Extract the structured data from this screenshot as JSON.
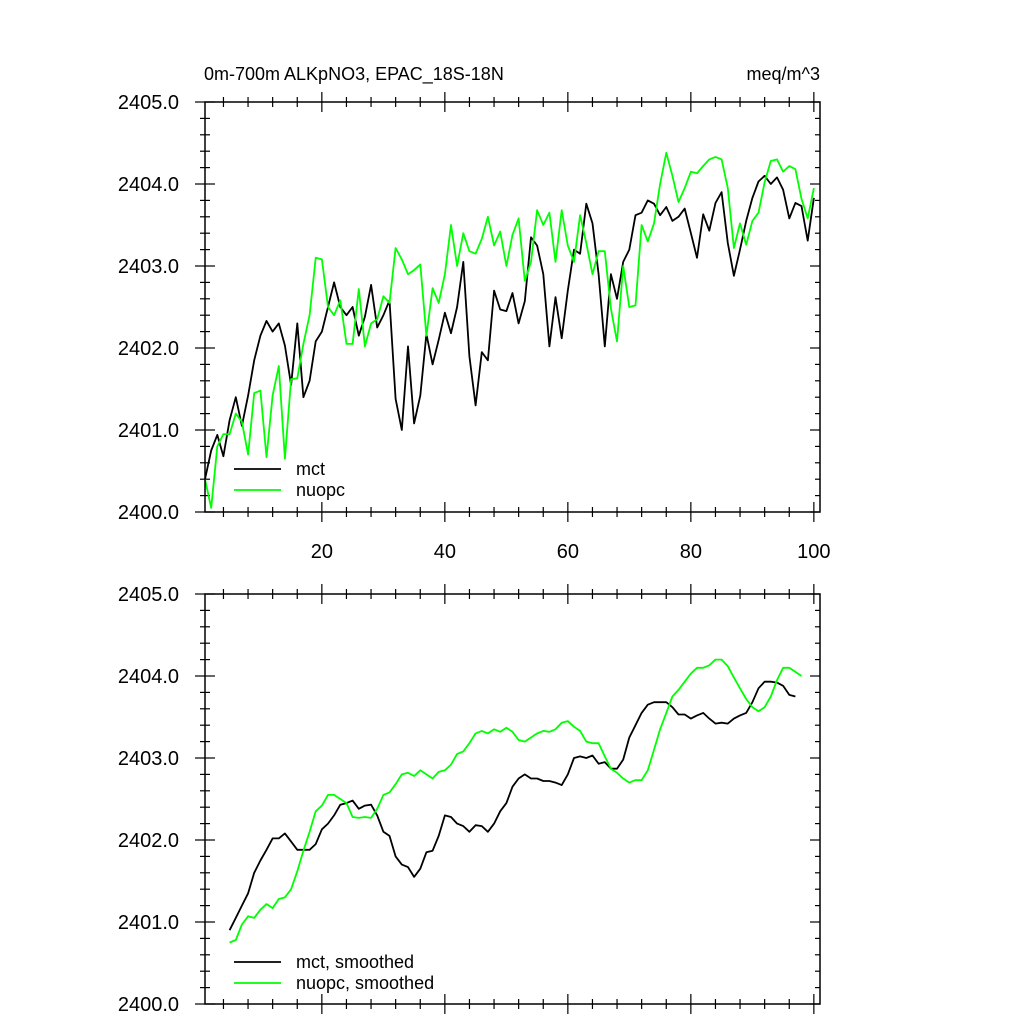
{
  "chart_data": [
    {
      "type": "line",
      "title_left": "0m-700m ALKpNO3, EPAC_18S-18N",
      "title_right": "meq/m^3",
      "xlim": [
        1,
        101
      ],
      "ylim": [
        2400.0,
        2405.0
      ],
      "x_ticks": [
        20,
        40,
        60,
        80,
        100
      ],
      "x_tick_labels": [
        "20",
        "40",
        "60",
        "80",
        "100"
      ],
      "y_ticks": [
        2400.0,
        2401.0,
        2402.0,
        2403.0,
        2404.0,
        2405.0
      ],
      "y_tick_labels": [
        "2400.0",
        "2401.0",
        "2402.0",
        "2403.0",
        "2404.0",
        "2405.0"
      ],
      "legend_position": "bottom-left",
      "x_start": 1,
      "series": [
        {
          "name": "mct",
          "color": "#000000",
          "values": [
            2400.4,
            2400.75,
            2400.94,
            2400.68,
            2401.12,
            2401.4,
            2401.05,
            2401.42,
            2401.85,
            2402.15,
            2402.33,
            2402.2,
            2402.3,
            2402.03,
            2401.55,
            2402.3,
            2401.4,
            2401.6,
            2402.08,
            2402.2,
            2402.5,
            2402.8,
            2402.5,
            2402.4,
            2402.5,
            2402.15,
            2402.38,
            2402.77,
            2402.25,
            2402.4,
            2402.58,
            2401.38,
            2401.0,
            2402.02,
            2401.08,
            2401.42,
            2402.17,
            2401.8,
            2402.1,
            2402.43,
            2402.18,
            2402.5,
            2403.05,
            2401.9,
            2401.3,
            2401.95,
            2401.85,
            2402.7,
            2402.47,
            2402.45,
            2402.67,
            2402.3,
            2402.57,
            2403.35,
            2403.25,
            2402.9,
            2402.02,
            2402.62,
            2402.12,
            2402.7,
            2403.2,
            2403.15,
            2403.76,
            2403.52,
            2402.9,
            2402.02,
            2402.9,
            2402.6,
            2403.05,
            2403.2,
            2403.62,
            2403.65,
            2403.8,
            2403.76,
            2403.62,
            2403.72,
            2403.55,
            2403.6,
            2403.7,
            2403.4,
            2403.1,
            2403.63,
            2403.43,
            2403.77,
            2403.9,
            2403.28,
            2402.88,
            2403.2,
            2403.55,
            2403.83,
            2404.03,
            2404.1,
            2404.0,
            2404.08,
            2403.93,
            2403.58,
            2403.77,
            2403.73,
            2403.31,
            2403.83
          ]
        },
        {
          "name": "nuopc",
          "color": "#00ff00",
          "values": [
            2400.4,
            2400.05,
            2400.8,
            2400.95,
            2400.95,
            2401.2,
            2401.1,
            2400.7,
            2401.45,
            2401.48,
            2400.67,
            2401.42,
            2401.78,
            2400.65,
            2401.62,
            2401.63,
            2402.05,
            2402.4,
            2403.1,
            2403.08,
            2402.5,
            2402.4,
            2402.58,
            2402.05,
            2402.05,
            2402.72,
            2402.02,
            2402.3,
            2402.35,
            2402.63,
            2402.55,
            2403.22,
            2403.08,
            2402.9,
            2402.95,
            2403.02,
            2402.15,
            2402.73,
            2402.55,
            2402.9,
            2403.5,
            2403.0,
            2403.4,
            2403.18,
            2403.15,
            2403.33,
            2403.6,
            2403.25,
            2403.42,
            2403.0,
            2403.38,
            2403.58,
            2402.82,
            2403.05,
            2403.68,
            2403.5,
            2403.65,
            2403.05,
            2403.68,
            2403.25,
            2403.05,
            2403.62,
            2403.28,
            2402.9,
            2403.18,
            2403.18,
            2402.48,
            2402.08,
            2403.0,
            2402.5,
            2402.52,
            2403.5,
            2403.3,
            2403.52,
            2404.0,
            2404.38,
            2404.1,
            2403.78,
            2403.95,
            2404.15,
            2404.13,
            2404.22,
            2404.3,
            2404.33,
            2404.3,
            2403.95,
            2403.22,
            2403.52,
            2403.26,
            2403.55,
            2403.65,
            2404.02,
            2404.28,
            2404.3,
            2404.15,
            2404.22,
            2404.18,
            2403.82,
            2403.58,
            2403.95
          ]
        }
      ]
    },
    {
      "type": "line",
      "xlim": [
        1,
        101
      ],
      "ylim": [
        2400.0,
        2405.0
      ],
      "x_ticks": [
        20,
        40,
        60,
        80,
        100
      ],
      "y_ticks": [
        2400.0,
        2401.0,
        2402.0,
        2403.0,
        2404.0,
        2405.0
      ],
      "y_tick_labels": [
        "2400.0",
        "2401.0",
        "2402.0",
        "2403.0",
        "2404.0",
        "2405.0"
      ],
      "legend_position": "bottom-left",
      "x_start": 5,
      "series": [
        {
          "name": "mct, smoothed",
          "color": "#000000",
          "values": [
            2400.9,
            2401.05,
            2401.2,
            2401.35,
            2401.6,
            2401.75,
            2401.88,
            2402.02,
            2402.02,
            2402.08,
            2401.98,
            2401.88,
            2401.88,
            2401.88,
            2401.95,
            2402.13,
            2402.2,
            2402.3,
            2402.43,
            2402.45,
            2402.48,
            2402.38,
            2402.42,
            2402.43,
            2402.3,
            2402.1,
            2402.05,
            2401.8,
            2401.7,
            2401.67,
            2401.55,
            2401.65,
            2401.85,
            2401.87,
            2402.05,
            2402.3,
            2402.28,
            2402.2,
            2402.17,
            2402.1,
            2402.18,
            2402.17,
            2402.1,
            2402.2,
            2402.35,
            2402.45,
            2402.65,
            2402.75,
            2402.8,
            2402.75,
            2402.75,
            2402.72,
            2402.72,
            2402.7,
            2402.67,
            2402.8,
            2403.0,
            2403.02,
            2403.0,
            2403.03,
            2402.93,
            2402.95,
            2402.87,
            2402.87,
            2402.98,
            2403.25,
            2403.4,
            2403.55,
            2403.65,
            2403.68,
            2403.68,
            2403.68,
            2403.62,
            2403.53,
            2403.53,
            2403.48,
            2403.52,
            2403.55,
            2403.48,
            2403.42,
            2403.43,
            2403.42,
            2403.48,
            2403.52,
            2403.55,
            2403.68,
            2403.85,
            2403.93,
            2403.93,
            2403.92,
            2403.88,
            2403.77,
            2403.75
          ]
        },
        {
          "name": "nuopc, smoothed",
          "color": "#00ff00",
          "values": [
            2400.75,
            2400.78,
            2400.97,
            2401.07,
            2401.05,
            2401.15,
            2401.22,
            2401.17,
            2401.28,
            2401.3,
            2401.4,
            2401.62,
            2401.87,
            2402.1,
            2402.35,
            2402.42,
            2402.55,
            2402.55,
            2402.5,
            2402.45,
            2402.28,
            2402.27,
            2402.28,
            2402.27,
            2402.38,
            2402.55,
            2402.58,
            2402.68,
            2402.8,
            2402.82,
            2402.78,
            2402.85,
            2402.8,
            2402.75,
            2402.83,
            2402.85,
            2402.92,
            2403.05,
            2403.08,
            2403.18,
            2403.3,
            2403.33,
            2403.3,
            2403.35,
            2403.32,
            2403.37,
            2403.32,
            2403.22,
            2403.2,
            2403.25,
            2403.3,
            2403.33,
            2403.32,
            2403.35,
            2403.43,
            2403.45,
            2403.38,
            2403.33,
            2403.2,
            2403.18,
            2403.18,
            2403.02,
            2402.87,
            2402.82,
            2402.75,
            2402.7,
            2402.73,
            2402.73,
            2402.85,
            2403.1,
            2403.35,
            2403.55,
            2403.75,
            2403.83,
            2403.93,
            2404.03,
            2404.1,
            2404.1,
            2404.13,
            2404.2,
            2404.2,
            2404.12,
            2403.98,
            2403.85,
            2403.72,
            2403.62,
            2403.57,
            2403.62,
            2403.75,
            2403.95,
            2404.1,
            2404.1,
            2404.05,
            2404.0
          ]
        }
      ]
    }
  ]
}
